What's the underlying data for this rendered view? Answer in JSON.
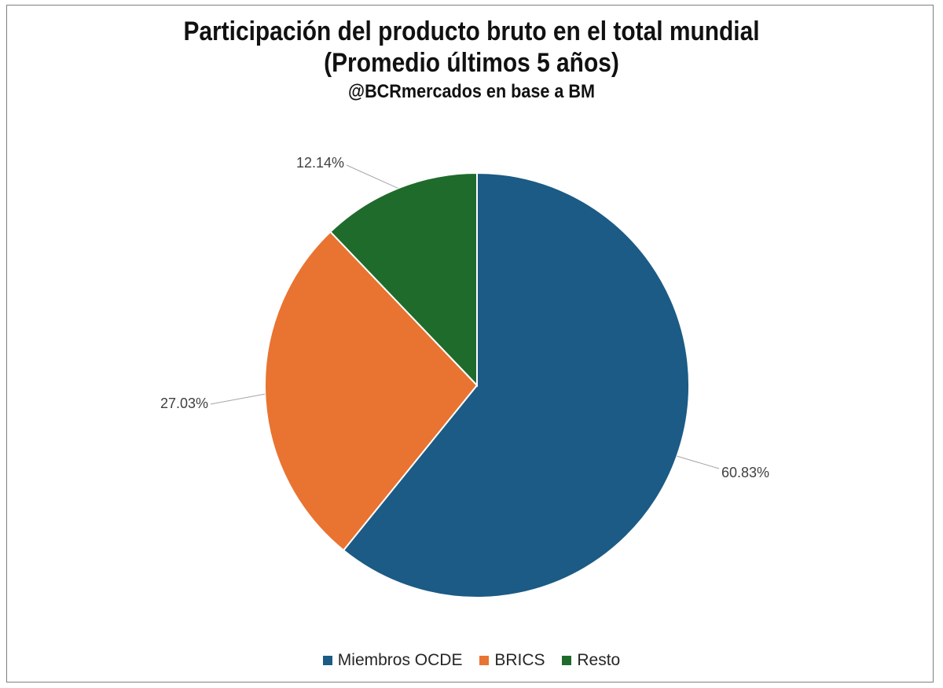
{
  "chart_data": {
    "type": "pie",
    "title": "Participación del producto bruto en el total mundial",
    "subtitle": "(Promedio últimos 5 años)",
    "source": "@BCRmercados en base a BM",
    "categories": [
      "Miembros OCDE",
      "BRICS",
      "Resto"
    ],
    "values": [
      60.83,
      27.03,
      12.14
    ],
    "labels": [
      "60.83%",
      "27.03%",
      "12.14%"
    ],
    "colors": [
      "#1b5b85",
      "#e97331",
      "#1f6b2c"
    ],
    "legend_position": "bottom"
  }
}
